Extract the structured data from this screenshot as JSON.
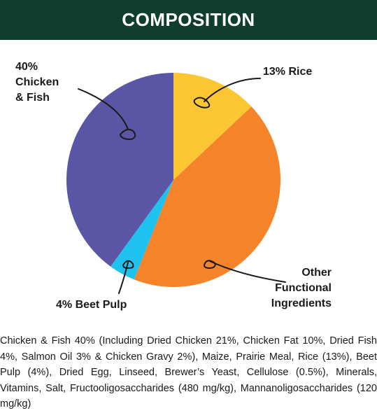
{
  "header": {
    "title": "COMPOSITION"
  },
  "colors": {
    "header_bg": "#0f3d2e",
    "chicken": "#5a55a5",
    "rice": "#fdc734",
    "other": "#f5832a",
    "beet": "#1fc1ee"
  },
  "chart_data": {
    "type": "pie",
    "slices": [
      {
        "label": "13% Rice",
        "value": 13,
        "color": "#fdc734"
      },
      {
        "label": "Other Functional Ingredients",
        "value": 43,
        "color": "#f5832a"
      },
      {
        "label": "4% Beet Pulp",
        "value": 4,
        "color": "#1fc1ee"
      },
      {
        "label": "40% Chicken & Fish",
        "value": 40,
        "color": "#5a55a5"
      }
    ],
    "labels": {
      "chicken": "40%\nChicken\n& Fish",
      "rice": "13% Rice",
      "other": "Other\nFunctional\nIngredients",
      "beet": "4% Beet Pulp"
    }
  },
  "description": "Chicken & Fish 40% (Including Dried Chicken 21%, Chicken Fat 10%, Dried Fish 4%, Salmon Oil 3% & Chicken Gravy 2%), Maize, Prairie Meal, Rice (13%), Beet Pulp (4%), Dried Egg, Linseed, Brewer’s Yeast, Cellulose (0.5%), Minerals, Vitamins, Salt, Fructooligosaccharides (480 mg/kg), Mannanoligosaccharides (120 mg/kg)"
}
